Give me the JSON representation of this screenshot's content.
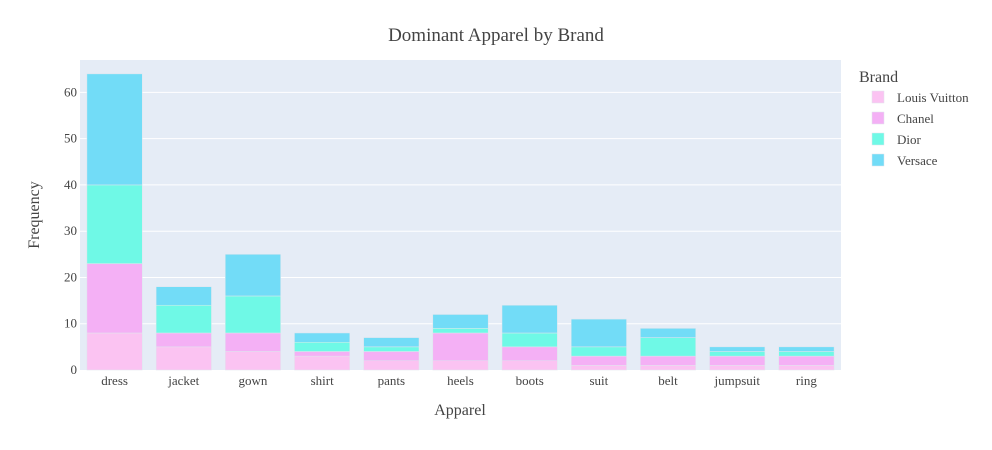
{
  "chart_data": {
    "type": "bar",
    "stacked": true,
    "title": "Dominant Apparel by Brand",
    "xlabel": "Apparel",
    "ylabel": "Frequency",
    "ylim": [
      0,
      67
    ],
    "yticks": [
      0,
      10,
      20,
      30,
      40,
      50,
      60
    ],
    "grid": true,
    "legend_title": "Brand",
    "legend_placement": "top-right",
    "categories": [
      "dress",
      "jacket",
      "gown",
      "shirt",
      "pants",
      "heels",
      "boots",
      "suit",
      "belt",
      "jumpsuit",
      "ring"
    ],
    "series": [
      {
        "name": "Louis Vuitton",
        "color": "#fbc3f2",
        "values": [
          8,
          5,
          4,
          3,
          2,
          2,
          2,
          1,
          1,
          1,
          1
        ]
      },
      {
        "name": "Chanel",
        "color": "#f4b0f5",
        "values": [
          15,
          3,
          4,
          1,
          2,
          6,
          3,
          2,
          2,
          2,
          2
        ]
      },
      {
        "name": "Dior",
        "color": "#6ff9e6",
        "values": [
          17,
          6,
          8,
          2,
          1,
          1,
          3,
          2,
          4,
          1,
          1
        ]
      },
      {
        "name": "Versace",
        "color": "#72dcf7",
        "values": [
          24,
          4,
          9,
          2,
          2,
          3,
          6,
          6,
          2,
          1,
          1
        ]
      }
    ]
  },
  "colors": {
    "plot_bg": "#e5ecf6",
    "grid": "#ffffff",
    "bar_outline": "#e0e6ee"
  }
}
